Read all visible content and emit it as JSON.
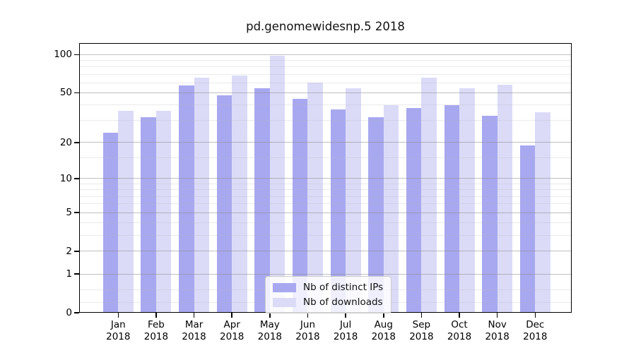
{
  "title": "pd.genomewidesnp.5 2018",
  "legend": {
    "items": [
      {
        "label": "Nb of distinct IPs",
        "color": "#a8a8f0"
      },
      {
        "label": "Nb of downloads",
        "color": "#dbdbf8"
      }
    ],
    "position": "lower center"
  },
  "colors": {
    "bar_distinct_ips": "#a8a8f0",
    "bar_downloads": "#dbdbf8",
    "grid_major": "#8c8c8c",
    "grid_minor": "#b4b4b4",
    "spine": "#000000",
    "background": "#ffffff"
  },
  "chart_data": {
    "type": "bar",
    "title": "pd.genomewidesnp.5 2018",
    "categories": [
      "Jan 2018",
      "Feb 2018",
      "Mar 2018",
      "Apr 2018",
      "May 2018",
      "Jun 2018",
      "Jul 2018",
      "Aug 2018",
      "Sep 2018",
      "Oct 2018",
      "Nov 2018",
      "Dec 2018"
    ],
    "series": [
      {
        "name": "Nb of distinct IPs",
        "color": "#a8a8f0",
        "values": [
          24,
          32,
          57,
          48,
          54,
          45,
          37,
          32,
          38,
          40,
          33,
          19
        ]
      },
      {
        "name": "Nb of downloads",
        "color": "#dbdbf8",
        "values": [
          36,
          36,
          66,
          68,
          98,
          60,
          54,
          40,
          66,
          54,
          58,
          35
        ]
      }
    ],
    "xlabel": "",
    "ylabel": "",
    "yscale": "log1p",
    "ylim": [
      0,
      112
    ],
    "y_ticks": [
      0,
      1,
      2,
      5,
      10,
      20,
      50,
      100
    ],
    "y_minor_ticks": [
      0.2,
      0.5,
      3,
      4,
      6,
      7,
      8,
      9,
      15,
      30,
      40,
      60,
      70,
      80,
      90
    ],
    "grid": true,
    "legend_position": "lower center"
  }
}
